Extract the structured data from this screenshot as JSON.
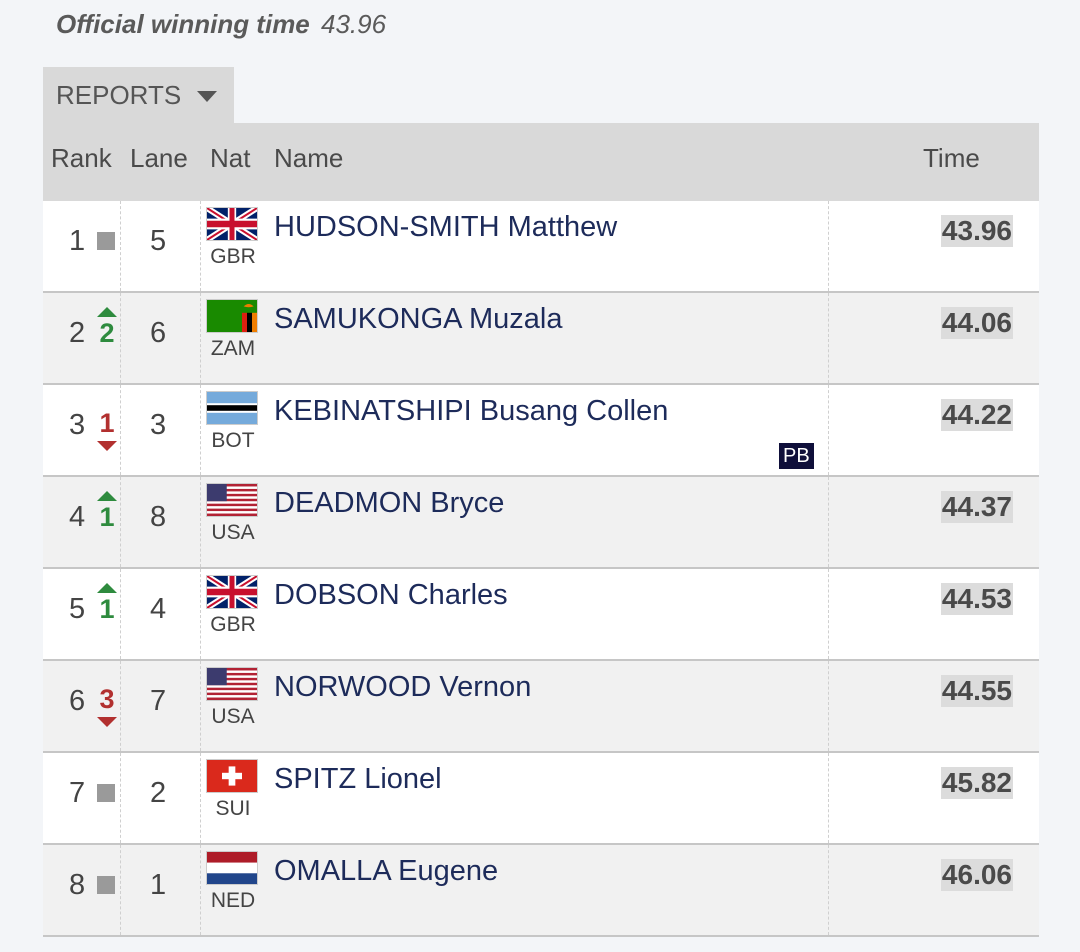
{
  "header": {
    "winning_label": "Official winning time",
    "winning_value": "43.96"
  },
  "reports": {
    "label": "REPORTS"
  },
  "columns": {
    "rank": "Rank",
    "lane": "Lane",
    "nat": "Nat",
    "name": "Name",
    "time": "Time"
  },
  "colors": {
    "up": "#2e8b3e",
    "down": "#b2302f",
    "same": "#9a9a9a",
    "pb_badge": "#0f0f3a"
  },
  "results": [
    {
      "rank": "1",
      "movement": "same",
      "move_value": "",
      "lane": "5",
      "flag": "gbr",
      "nat": "GBR",
      "name": "HUDSON-SMITH Matthew",
      "time": "43.96",
      "badge": ""
    },
    {
      "rank": "2",
      "movement": "up",
      "move_value": "2",
      "lane": "6",
      "flag": "zam",
      "nat": "ZAM",
      "name": "SAMUKONGA Muzala",
      "time": "44.06",
      "badge": ""
    },
    {
      "rank": "3",
      "movement": "down",
      "move_value": "1",
      "lane": "3",
      "flag": "bot",
      "nat": "BOT",
      "name": "KEBINATSHIPI Busang Collen",
      "time": "44.22",
      "badge": "PB"
    },
    {
      "rank": "4",
      "movement": "up",
      "move_value": "1",
      "lane": "8",
      "flag": "usa",
      "nat": "USA",
      "name": "DEADMON Bryce",
      "time": "44.37",
      "badge": ""
    },
    {
      "rank": "5",
      "movement": "up",
      "move_value": "1",
      "lane": "4",
      "flag": "gbr",
      "nat": "GBR",
      "name": "DOBSON Charles",
      "time": "44.53",
      "badge": ""
    },
    {
      "rank": "6",
      "movement": "down",
      "move_value": "3",
      "lane": "7",
      "flag": "usa",
      "nat": "USA",
      "name": "NORWOOD Vernon",
      "time": "44.55",
      "badge": ""
    },
    {
      "rank": "7",
      "movement": "same",
      "move_value": "",
      "lane": "2",
      "flag": "sui",
      "nat": "SUI",
      "name": "SPITZ Lionel",
      "time": "45.82",
      "badge": ""
    },
    {
      "rank": "8",
      "movement": "same",
      "move_value": "",
      "lane": "1",
      "flag": "ned",
      "nat": "NED",
      "name": "OMALLA Eugene",
      "time": "46.06",
      "badge": ""
    }
  ]
}
